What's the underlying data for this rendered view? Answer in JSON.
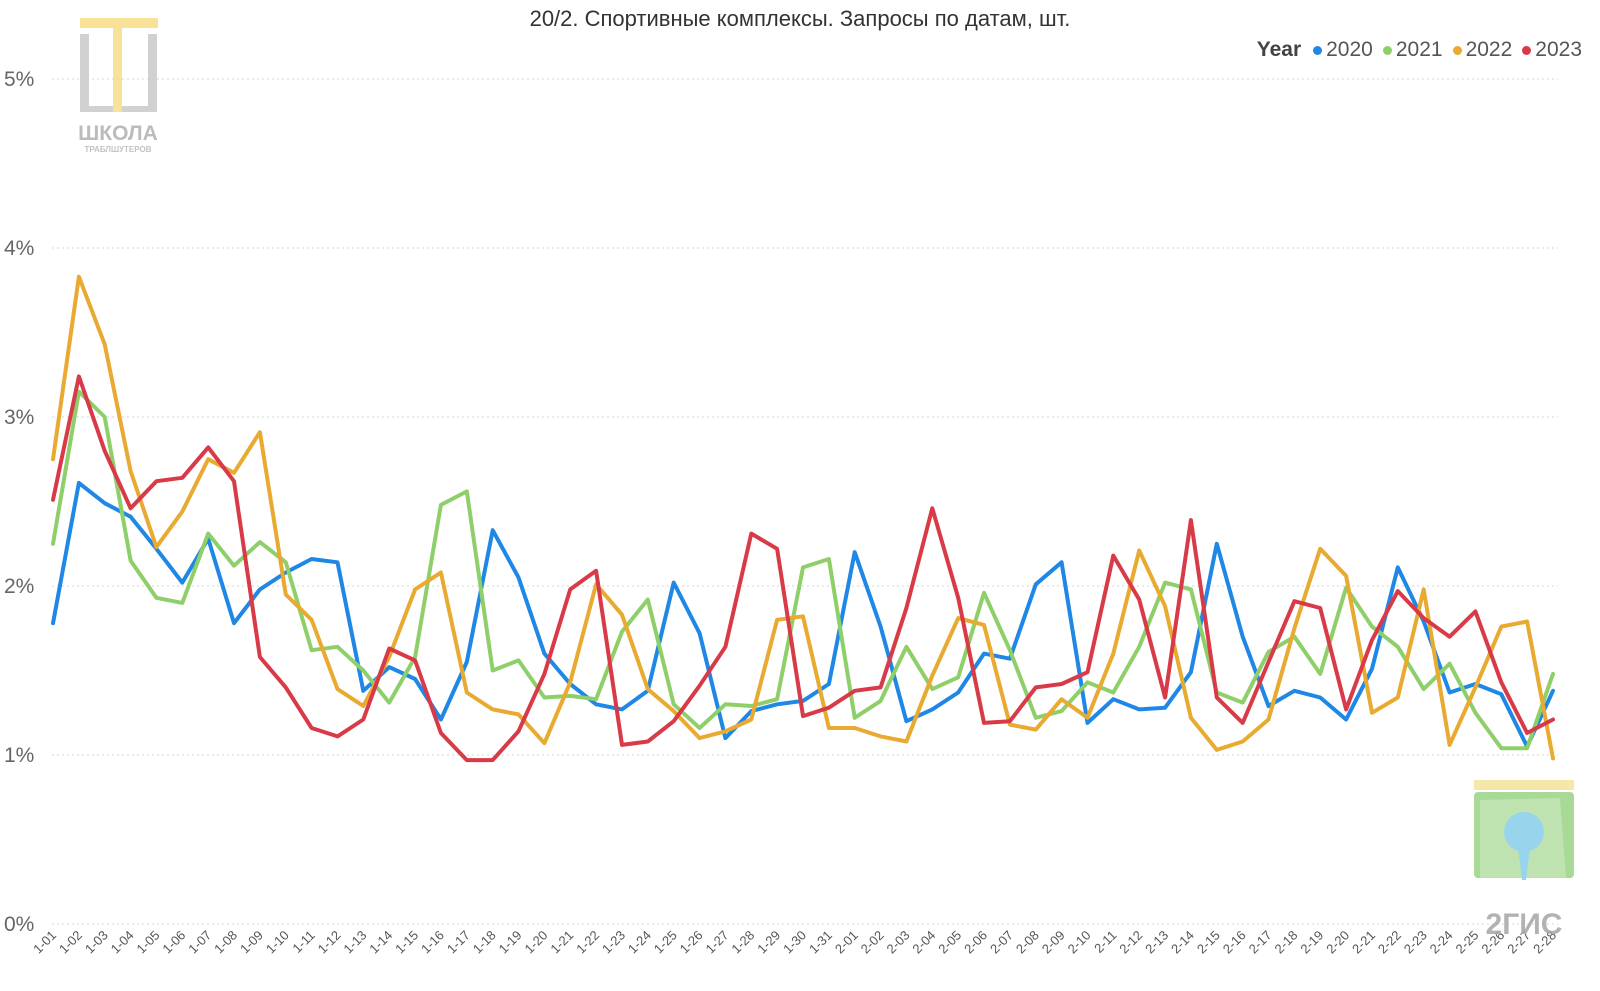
{
  "chart_data": {
    "type": "line",
    "title": "20/2. Спортивные комплексы. Запросы по датам, шт.",
    "legend_title": "Year",
    "legend_position": "top-right",
    "xlabel": "",
    "ylabel": "",
    "grid": true,
    "ylim": [
      0,
      5
    ],
    "y_ticks": [
      {
        "value": 0,
        "label": "0%"
      },
      {
        "value": 1,
        "label": "1%"
      },
      {
        "value": 2,
        "label": "2%"
      },
      {
        "value": 3,
        "label": "3%"
      },
      {
        "value": 4,
        "label": "4%"
      },
      {
        "value": 5,
        "label": "5%"
      }
    ],
    "categories": [
      "1-01",
      "1-02",
      "1-03",
      "1-04",
      "1-05",
      "1-06",
      "1-07",
      "1-08",
      "1-09",
      "1-10",
      "1-11",
      "1-12",
      "1-13",
      "1-14",
      "1-15",
      "1-16",
      "1-17",
      "1-18",
      "1-19",
      "1-20",
      "1-21",
      "1-22",
      "1-23",
      "1-24",
      "1-25",
      "1-26",
      "1-27",
      "1-28",
      "1-29",
      "1-30",
      "1-31",
      "2-01",
      "2-02",
      "2-03",
      "2-04",
      "2-05",
      "2-06",
      "2-07",
      "2-08",
      "2-09",
      "2-10",
      "2-11",
      "2-12",
      "2-13",
      "2-14",
      "2-15",
      "2-16",
      "2-17",
      "2-18",
      "2-19",
      "2-20",
      "2-21",
      "2-22",
      "2-23",
      "2-24",
      "2-25",
      "2-26",
      "2-27",
      "2-28"
    ],
    "series": [
      {
        "name": "2020",
        "color": "#1f87e5",
        "values": [
          1.78,
          2.61,
          2.49,
          2.41,
          2.22,
          2.02,
          2.28,
          1.78,
          1.98,
          2.08,
          2.16,
          2.14,
          1.38,
          1.52,
          1.45,
          1.21,
          1.55,
          2.33,
          2.05,
          1.6,
          1.42,
          1.3,
          1.27,
          1.38,
          2.02,
          1.72,
          1.1,
          1.26,
          1.3,
          1.32,
          1.42,
          2.2,
          1.76,
          1.2,
          1.27,
          1.37,
          1.6,
          1.57,
          2.01,
          2.14,
          1.19,
          1.33,
          1.27,
          1.28,
          1.49,
          2.25,
          1.7,
          1.29,
          1.38,
          1.34,
          1.21,
          1.51,
          2.11,
          1.79,
          1.37,
          1.42,
          1.36,
          1.05,
          1.38
        ]
      },
      {
        "name": "2021",
        "color": "#8fcf6a",
        "values": [
          2.25,
          3.15,
          3.0,
          2.15,
          1.93,
          1.9,
          2.31,
          2.12,
          2.26,
          2.14,
          1.62,
          1.64,
          1.5,
          1.31,
          1.58,
          2.48,
          2.56,
          1.5,
          1.56,
          1.34,
          1.35,
          1.33,
          1.73,
          1.92,
          1.3,
          1.16,
          1.3,
          1.29,
          1.33,
          2.11,
          2.16,
          1.22,
          1.32,
          1.64,
          1.39,
          1.46,
          1.96,
          1.62,
          1.22,
          1.26,
          1.43,
          1.37,
          1.64,
          2.02,
          1.98,
          1.37,
          1.31,
          1.61,
          1.7,
          1.48,
          1.99,
          1.76,
          1.64,
          1.39,
          1.54,
          1.25,
          1.04,
          1.04,
          1.48
        ]
      },
      {
        "name": "2022",
        "color": "#e8aa30",
        "values": [
          2.75,
          3.83,
          3.43,
          2.68,
          2.23,
          2.44,
          2.75,
          2.67,
          2.91,
          1.95,
          1.8,
          1.39,
          1.29,
          1.58,
          1.98,
          2.08,
          1.37,
          1.27,
          1.24,
          1.07,
          1.43,
          2.01,
          1.83,
          1.39,
          1.26,
          1.1,
          1.14,
          1.21,
          1.8,
          1.82,
          1.16,
          1.16,
          1.11,
          1.08,
          1.47,
          1.81,
          1.77,
          1.18,
          1.15,
          1.33,
          1.22,
          1.6,
          2.21,
          1.88,
          1.22,
          1.03,
          1.08,
          1.21,
          1.75,
          2.22,
          2.06,
          1.25,
          1.34,
          1.98,
          1.06,
          1.4,
          1.76,
          1.79,
          0.98
        ]
      },
      {
        "name": "2023",
        "color": "#d93a48",
        "values": [
          2.51,
          3.24,
          2.8,
          2.46,
          2.62,
          2.64,
          2.82,
          2.62,
          1.58,
          1.4,
          1.16,
          1.11,
          1.21,
          1.63,
          1.56,
          1.13,
          0.97,
          0.97,
          1.14,
          1.48,
          1.98,
          2.09,
          1.06,
          1.08,
          1.2,
          1.41,
          1.64,
          2.31,
          2.22,
          1.23,
          1.28,
          1.38,
          1.4,
          1.87,
          2.46,
          1.93,
          1.19,
          1.2,
          1.4,
          1.42,
          1.49,
          2.18,
          1.92,
          1.34,
          2.39,
          1.34,
          1.19,
          1.55,
          1.91,
          1.87,
          1.27,
          1.68,
          1.97,
          1.81,
          1.7,
          1.85,
          1.43,
          1.13,
          1.21
        ]
      }
    ]
  },
  "watermarks": {
    "top_left_logo_text": "ШКОЛА",
    "top_left_logo_subtext": "ТРАБЛШУТЕРОВ",
    "bottom_right_logo_text": "2ГИС"
  }
}
